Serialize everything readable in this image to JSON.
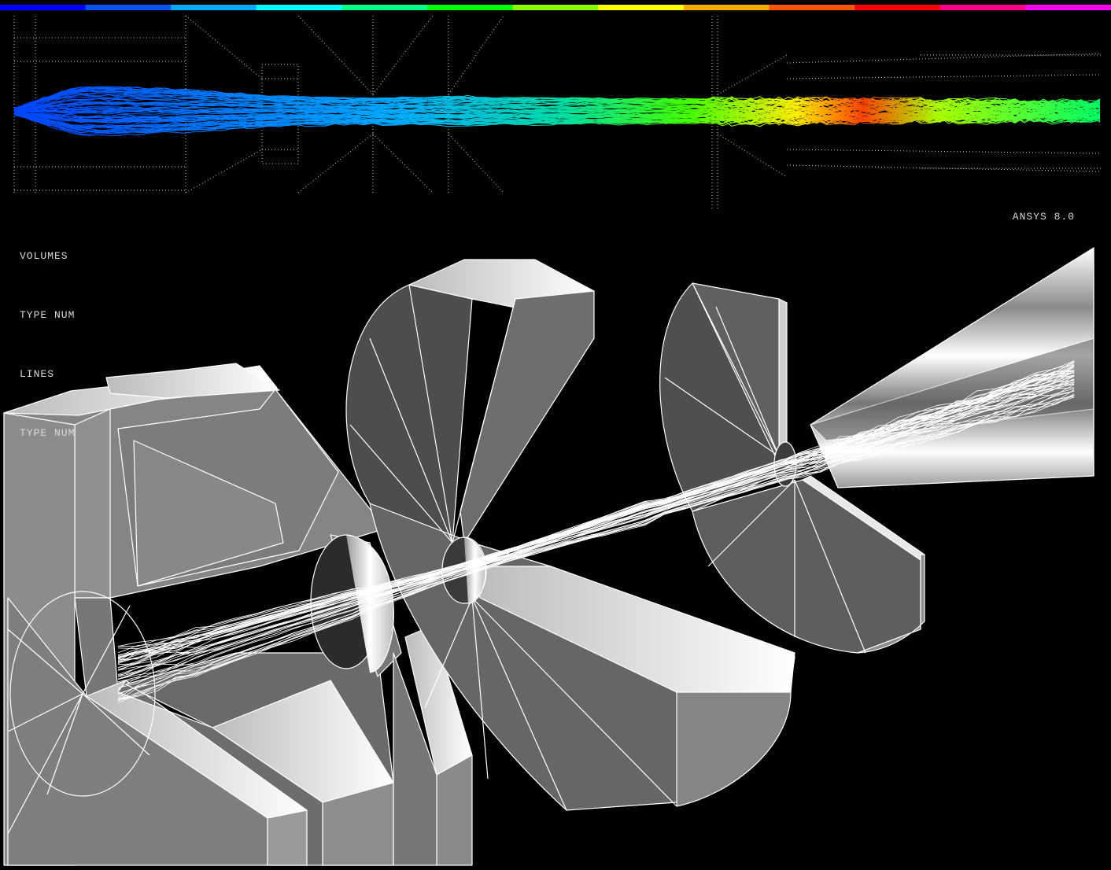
{
  "window": {
    "background": "#000000",
    "version_label": "ANSYS 8.0"
  },
  "legend": {
    "lines": [
      "VOLUMES",
      "TYPE NUM",
      "LINES",
      "TYPE NUM"
    ]
  },
  "colorbar": {
    "colors": [
      "#0000ff",
      "#0055ff",
      "#00aaff",
      "#00ffff",
      "#00ff88",
      "#00ff00",
      "#88ff00",
      "#ffff00",
      "#ffaa00",
      "#ff5500",
      "#ff0000",
      "#ff0088",
      "#ff00ff"
    ]
  },
  "scene": {
    "solid_fill": "#7a7a7a",
    "solid_edge": "#ffffff",
    "trajectory_color": "#ffffff"
  }
}
